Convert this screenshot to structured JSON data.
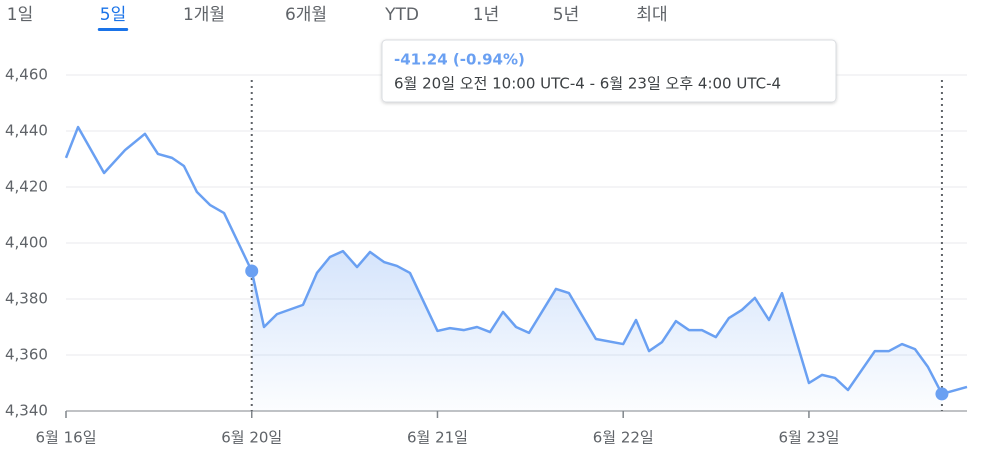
{
  "tabs": [
    {
      "label": "1일",
      "selected": false
    },
    {
      "label": "5일",
      "selected": true
    },
    {
      "label": "1개월",
      "selected": false
    },
    {
      "label": "6개월",
      "selected": false
    },
    {
      "label": "YTD",
      "selected": false
    },
    {
      "label": "1년",
      "selected": false
    },
    {
      "label": "5년",
      "selected": false
    },
    {
      "label": "최대",
      "selected": false
    }
  ],
  "tooltip": {
    "change": "-41.24 (-0.94%)",
    "range": "6월 20일 오전 10:00 UTC-4 - 6월 23일 오후 4:00 UTC-4"
  },
  "chart_data": {
    "type": "line",
    "color": "#6aa0f2",
    "grid": true,
    "selected_range": {
      "start_index": 11,
      "end_index": 56
    },
    "x": [
      0,
      0.065,
      0.205,
      0.318,
      0.425,
      0.495,
      0.571,
      0.635,
      0.705,
      0.775,
      0.851,
      1.0,
      1.066,
      1.136,
      1.276,
      1.351,
      1.421,
      1.491,
      1.567,
      1.637,
      1.712,
      1.782,
      1.852,
      2.0,
      2.067,
      2.143,
      2.213,
      2.283,
      2.353,
      2.423,
      2.493,
      2.638,
      2.708,
      2.853,
      3.0,
      3.069,
      3.139,
      3.209,
      3.284,
      3.354,
      3.424,
      3.499,
      3.569,
      3.639,
      3.709,
      3.785,
      3.855,
      4.0,
      4.07,
      4.14,
      4.21,
      4.355,
      4.431,
      4.501,
      4.571,
      4.641,
      4.716,
      4.851
    ],
    "values": [
      4430.4,
      4441.4,
      4425.0,
      4433.2,
      4439.0,
      4431.8,
      4430.4,
      4427.5,
      4418.2,
      4413.6,
      4410.7,
      4390.0,
      4370.0,
      4374.6,
      4377.9,
      4389.3,
      4395.0,
      4397.1,
      4391.4,
      4396.8,
      4393.2,
      4391.8,
      4389.3,
      4368.6,
      4369.6,
      4368.9,
      4370.0,
      4368.2,
      4375.4,
      4370.0,
      4367.9,
      4383.6,
      4382.1,
      4365.7,
      4363.9,
      4372.5,
      4361.4,
      4364.6,
      4372.1,
      4368.9,
      4368.9,
      4366.4,
      4373.2,
      4376.1,
      4380.4,
      4372.5,
      4382.1,
      4350.0,
      4352.9,
      4351.8,
      4347.5,
      4361.4,
      4361.4,
      4363.9,
      4362.1,
      4355.7,
      4346.1,
      4348.6
    ],
    "xlim": [
      0,
      4.851
    ],
    "xticks": [
      {
        "value": 0,
        "label": "6월 16일"
      },
      {
        "value": 1,
        "label": "6월 20일"
      },
      {
        "value": 2,
        "label": "6월 21일"
      },
      {
        "value": 3,
        "label": "6월 22일"
      },
      {
        "value": 4,
        "label": "6월 23일"
      }
    ],
    "ylim": [
      4340,
      4460
    ],
    "yticks": [
      {
        "value": 4340,
        "label": "4,340"
      },
      {
        "value": 4360,
        "label": "4,360"
      },
      {
        "value": 4380,
        "label": "4,380"
      },
      {
        "value": 4400,
        "label": "4,400"
      },
      {
        "value": 4420,
        "label": "4,420"
      },
      {
        "value": 4440,
        "label": "4,440"
      },
      {
        "value": 4460,
        "label": "4,460"
      }
    ]
  }
}
